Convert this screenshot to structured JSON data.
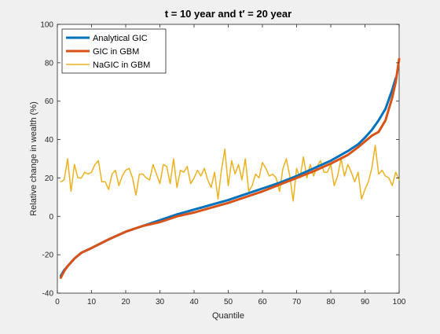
{
  "chart_data": {
    "type": "line",
    "title": "t = 10 year and t′ = 20 year",
    "xlabel": "Quantile",
    "ylabel": "Relative change in wealth (%)",
    "xlim": [
      0,
      100
    ],
    "ylim": [
      -40,
      100
    ],
    "xticks": [
      0,
      10,
      20,
      30,
      40,
      50,
      60,
      70,
      80,
      90,
      100
    ],
    "yticks": [
      -40,
      -20,
      0,
      20,
      40,
      60,
      80,
      100
    ],
    "grid": false,
    "legend_position": "top-left",
    "series": [
      {
        "name": "Analytical GIC",
        "color": "#0072bd",
        "x": [
          1,
          2,
          3,
          5,
          7,
          10,
          15,
          20,
          25,
          30,
          35,
          40,
          45,
          50,
          55,
          60,
          65,
          70,
          75,
          80,
          85,
          88,
          90,
          92,
          94,
          96,
          97,
          98,
          99
        ],
        "y": [
          -31,
          -28,
          -26,
          -22,
          -19,
          -16.5,
          -12,
          -8,
          -5,
          -2,
          1,
          3.5,
          6,
          8.5,
          11.5,
          14.5,
          17.5,
          21,
          25,
          29,
          34,
          37.5,
          41,
          45,
          50,
          56,
          61,
          66,
          72
        ]
      },
      {
        "name": "GIC in GBM",
        "color": "#d95319",
        "x": [
          1,
          2,
          3,
          5,
          7,
          10,
          15,
          20,
          25,
          30,
          35,
          40,
          45,
          50,
          55,
          60,
          65,
          70,
          75,
          80,
          85,
          88,
          90,
          92,
          94,
          96,
          97,
          98,
          99,
          100
        ],
        "y": [
          -32,
          -28.5,
          -26,
          -22,
          -19,
          -16.5,
          -12,
          -8,
          -5,
          -3,
          0,
          2,
          4.5,
          7,
          10,
          13,
          16.5,
          20,
          23.5,
          27.5,
          32,
          36,
          39,
          42,
          44,
          50,
          56,
          62,
          70,
          82
        ]
      },
      {
        "name": "NaGIC in GBM",
        "color": "#edb120",
        "x": [
          1,
          2,
          3,
          4,
          5,
          6,
          7,
          8,
          9,
          10,
          11,
          12,
          13,
          14,
          15,
          16,
          17,
          18,
          19,
          20,
          21,
          22,
          23,
          24,
          25,
          26,
          27,
          28,
          29,
          30,
          31,
          32,
          33,
          34,
          35,
          36,
          37,
          38,
          39,
          40,
          41,
          42,
          43,
          44,
          45,
          46,
          47,
          48,
          49,
          50,
          51,
          52,
          53,
          54,
          55,
          56,
          57,
          58,
          59,
          60,
          61,
          62,
          63,
          64,
          65,
          66,
          67,
          68,
          69,
          70,
          71,
          72,
          73,
          74,
          75,
          76,
          77,
          78,
          79,
          80,
          81,
          82,
          83,
          84,
          85,
          86,
          87,
          88,
          89,
          90,
          91,
          92,
          93,
          94,
          95,
          96,
          97,
          98,
          99,
          100
        ],
        "y": [
          18,
          19,
          30,
          13,
          27,
          20,
          20,
          23,
          22,
          23,
          27,
          29,
          18,
          18,
          14,
          22,
          24,
          16,
          21,
          24,
          25,
          20,
          11,
          22,
          22,
          20,
          19,
          27,
          22,
          17,
          27,
          26,
          17,
          30,
          15,
          24,
          23,
          26,
          17,
          20,
          24,
          21,
          25,
          19,
          15,
          23,
          9,
          24,
          35,
          16,
          29,
          22,
          27,
          19,
          30,
          13,
          16,
          22,
          20,
          28,
          25,
          21,
          22,
          20,
          13,
          25,
          30,
          21,
          8,
          25,
          20,
          31,
          20,
          27,
          21,
          26,
          29,
          23,
          23,
          27,
          16,
          21,
          30,
          21,
          27,
          23,
          18,
          23,
          9,
          14,
          18,
          25,
          37,
          22,
          24,
          21,
          20,
          16,
          23,
          19
        ]
      }
    ]
  }
}
